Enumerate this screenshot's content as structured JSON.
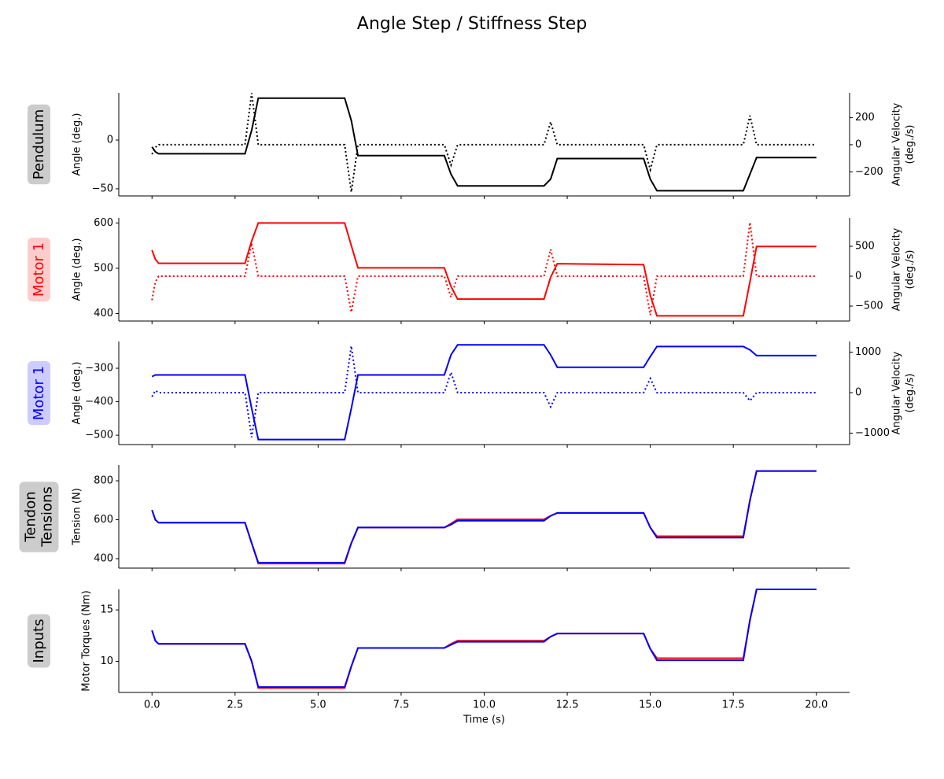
{
  "title": "Angle Step / Stiffness Step",
  "chart_data": [
    {
      "type": "line",
      "panel_label": [
        "Pendulum"
      ],
      "label_color": "#000000",
      "label_box_color": "#cccccc",
      "ylabel": "Angle (deg.)",
      "y2label": [
        "Angular Velocity",
        "(deg./s)"
      ],
      "x": [
        0,
        0.1,
        0.2,
        2.8,
        3.0,
        3.2,
        5.8,
        6.0,
        6.2,
        8.8,
        9.0,
        9.2,
        11.8,
        12.0,
        12.2,
        14.8,
        15.0,
        15.2,
        17.8,
        18.0,
        18.2,
        20
      ],
      "xlim": [
        -1,
        21
      ],
      "ylim": [
        -57.3,
        48.4
      ],
      "yticks": [
        {
          "value": -50,
          "label": "−50"
        },
        0
      ],
      "y2lim": [
        -377,
        382
      ],
      "y2ticks": [
        {
          "value": -200,
          "label": "−200"
        },
        0,
        200
      ],
      "series": [
        {
          "color": "#000000",
          "style": "dotted",
          "axis": "y2",
          "values": [
            -70,
            -20,
            0,
            0,
            380,
            0,
            0,
            -348,
            0,
            0,
            -150,
            0,
            0,
            168,
            0,
            0,
            -185,
            0,
            0,
            214,
            0,
            0
          ]
        },
        {
          "color": "#000000",
          "style": "solid",
          "axis": "y",
          "values": [
            -7,
            -12,
            -14,
            -14,
            10,
            43,
            43,
            20,
            -16,
            -16,
            -35,
            -47,
            -47,
            -40,
            -19,
            -19,
            -40,
            -52,
            -52,
            -35,
            -18,
            -18
          ]
        }
      ]
    },
    {
      "type": "line",
      "panel_label": [
        "Motor 1"
      ],
      "label_color": "#ff0000",
      "label_box_color": "#ffcccc",
      "ylabel": "Angle (deg.)",
      "y2label": [
        "Angular Velocity",
        "(deg./s)"
      ],
      "x": [
        0,
        0.1,
        0.2,
        2.8,
        3.0,
        3.2,
        5.8,
        6.0,
        6.2,
        8.8,
        9.0,
        9.2,
        11.8,
        12.0,
        12.2,
        14.8,
        15.0,
        15.2,
        17.8,
        18.0,
        18.2,
        20
      ],
      "xlim": [
        -1,
        21
      ],
      "ylim": [
        383.5,
        611
      ],
      "yticks": [
        400,
        500,
        600
      ],
      "y2lim": [
        -750,
        974
      ],
      "y2ticks": [
        {
          "value": -500,
          "label": "−500"
        },
        0,
        500
      ],
      "series": [
        {
          "color": "#ff0000",
          "style": "dotted",
          "axis": "y2",
          "values": [
            -400,
            -100,
            0,
            0,
            550,
            0,
            0,
            -600,
            0,
            0,
            -350,
            0,
            0,
            450,
            0,
            0,
            -650,
            0,
            0,
            900,
            0,
            0
          ]
        },
        {
          "color": "#ff0000",
          "style": "solid",
          "axis": "y",
          "values": [
            540,
            520,
            511,
            511,
            560,
            600,
            600,
            550,
            501,
            501,
            460,
            432,
            432,
            480,
            510,
            508,
            440,
            395,
            395,
            470,
            548,
            548
          ]
        }
      ]
    },
    {
      "type": "line",
      "panel_label": [
        "Motor 1"
      ],
      "label_color": "#0000ff",
      "label_box_color": "#ccccff",
      "ylabel": "Angle (deg.)",
      "y2label": [
        "Angular Velocity",
        "(deg./s)"
      ],
      "x": [
        0,
        0.1,
        0.2,
        2.8,
        3.0,
        3.2,
        5.8,
        6.0,
        6.2,
        8.8,
        9.0,
        9.2,
        11.8,
        12.0,
        12.2,
        14.8,
        15.0,
        15.2,
        17.8,
        18.0,
        18.2,
        20
      ],
      "xlim": [
        -1,
        21
      ],
      "ylim": [
        -528,
        -220
      ],
      "yticks": [
        {
          "value": -500,
          "label": "−500"
        },
        {
          "value": -400,
          "label": "−400"
        },
        {
          "value": -300,
          "label": "−300"
        }
      ],
      "y2lim": [
        -1282,
        1262
      ],
      "y2ticks": [
        {
          "value": -1000,
          "label": "−1000"
        },
        0,
        1000
      ],
      "series": [
        {
          "color": "#0000ff",
          "style": "dotted",
          "axis": "y2",
          "values": [
            -100,
            50,
            0,
            0,
            -1100,
            0,
            0,
            1150,
            0,
            0,
            500,
            0,
            0,
            -350,
            0,
            0,
            350,
            0,
            0,
            -200,
            0,
            0
          ]
        },
        {
          "color": "#0000ff",
          "style": "solid",
          "axis": "y",
          "values": [
            -325,
            -320,
            -320,
            -320,
            -420,
            -513,
            -513,
            -420,
            -320,
            -320,
            -260,
            -230,
            -230,
            -260,
            -297,
            -297,
            -265,
            -235,
            -235,
            -245,
            -262,
            -262
          ]
        }
      ]
    },
    {
      "type": "line",
      "panel_label": [
        "Tendon",
        "Tensions"
      ],
      "label_color": "#000000",
      "label_box_color": "#cccccc",
      "ylabel": "Tension (N)",
      "x": [
        0,
        0.1,
        0.2,
        2.8,
        3.0,
        3.2,
        5.8,
        6.0,
        6.2,
        8.8,
        9.0,
        9.2,
        11.8,
        12.0,
        12.2,
        14.8,
        15.0,
        15.2,
        17.8,
        18.0,
        18.2,
        20
      ],
      "xlim": [
        -1,
        21
      ],
      "ylim": [
        351.5,
        881
      ],
      "yticks": [
        400,
        600,
        800
      ],
      "series": [
        {
          "color": "#ff0000",
          "style": "solid",
          "axis": "y",
          "values": [
            650,
            600,
            585,
            585,
            480,
            375,
            375,
            480,
            560,
            560,
            580,
            602,
            602,
            620,
            635,
            635,
            560,
            515,
            515,
            700,
            850,
            850
          ]
        },
        {
          "color": "#0000ff",
          "style": "solid",
          "axis": "y",
          "values": [
            650,
            600,
            585,
            585,
            480,
            380,
            380,
            480,
            560,
            560,
            575,
            595,
            595,
            620,
            635,
            635,
            560,
            508,
            508,
            700,
            850,
            850
          ]
        }
      ]
    },
    {
      "type": "line",
      "panel_label": [
        "Inputs"
      ],
      "label_color": "#000000",
      "label_box_color": "#cccccc",
      "ylabel": "Motor Torques (Nm)",
      "xlabel": "Time (s)",
      "x": [
        0,
        0.1,
        0.2,
        2.8,
        3.0,
        3.2,
        5.8,
        6.0,
        6.2,
        8.8,
        9.0,
        9.2,
        11.8,
        12.0,
        12.2,
        14.8,
        15.0,
        15.2,
        17.8,
        18.0,
        18.2,
        20
      ],
      "xlim": [
        -1,
        21
      ],
      "ylim": [
        6.97,
        17
      ],
      "yticks": [
        10,
        15
      ],
      "xticks": [
        {
          "value": 0,
          "label": "0.0"
        },
        2.5,
        {
          "value": 5,
          "label": "5.0"
        },
        7.5,
        {
          "value": 10,
          "label": "10.0"
        },
        12.5,
        {
          "value": 15,
          "label": "15.0"
        },
        17.5,
        {
          "value": 20,
          "label": "20.0"
        }
      ],
      "series": [
        {
          "color": "#ff0000",
          "style": "solid",
          "axis": "y",
          "values": [
            13,
            12,
            11.7,
            11.7,
            10,
            7.4,
            7.4,
            9.5,
            11.3,
            11.3,
            11.7,
            12.0,
            12.0,
            12.4,
            12.7,
            12.7,
            11.2,
            10.3,
            10.3,
            14,
            17,
            17
          ]
        },
        {
          "color": "#0000ff",
          "style": "solid",
          "axis": "y",
          "values": [
            13,
            12,
            11.7,
            11.7,
            10,
            7.5,
            7.5,
            9.5,
            11.3,
            11.3,
            11.6,
            11.9,
            11.9,
            12.4,
            12.7,
            12.7,
            11.2,
            10.1,
            10.1,
            14,
            17,
            17
          ]
        }
      ]
    }
  ]
}
